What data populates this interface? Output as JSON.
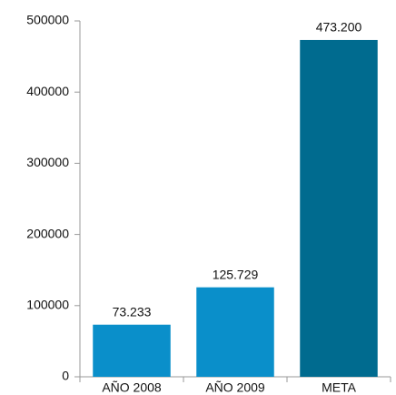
{
  "chart_data": {
    "type": "bar",
    "categories": [
      "AÑO 2008",
      "AÑO 2009",
      "META"
    ],
    "values": [
      73233,
      125729,
      473200
    ],
    "value_labels": [
      "73.233",
      "125.729",
      "473.200"
    ],
    "colors": [
      "#0a8fca",
      "#0a8fca",
      "#006b8f"
    ],
    "ylim": [
      0,
      500000
    ],
    "yticks": [
      0,
      100000,
      200000,
      300000,
      400000,
      500000
    ],
    "grid": false
  }
}
